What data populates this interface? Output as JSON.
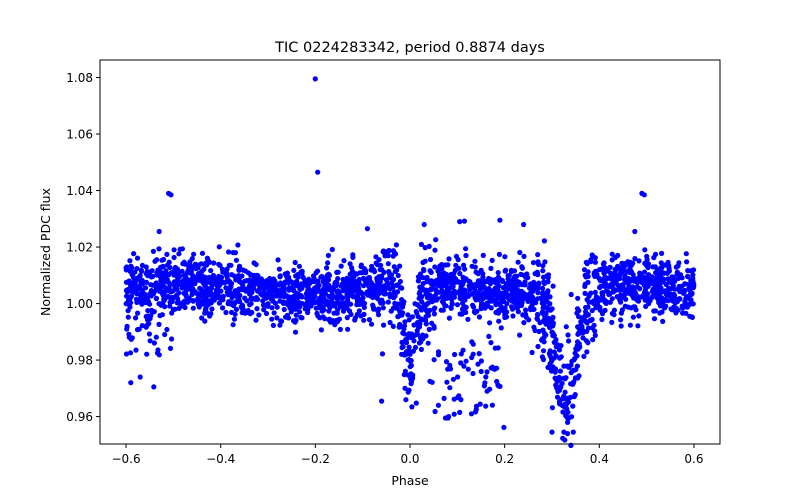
{
  "chart_data": {
    "type": "scatter",
    "title": "TIC 0224283342, period 0.8874 days",
    "xlabel": "Phase",
    "ylabel": "Normalized PDC flux",
    "xlim": [
      -0.655,
      0.655
    ],
    "ylim": [
      0.9503,
      1.0862
    ],
    "xticks": [
      -0.6,
      -0.4,
      -0.2,
      0.0,
      0.2,
      0.4,
      0.6
    ],
    "xtick_labels": [
      "−0.6",
      "−0.4",
      "−0.2",
      "0.0",
      "0.2",
      "0.4",
      "0.6"
    ],
    "yticks": [
      0.96,
      0.98,
      1.0,
      1.02,
      1.04,
      1.06,
      1.08
    ],
    "ytick_labels": [
      "0.96",
      "0.98",
      "1.00",
      "1.02",
      "1.04",
      "1.06",
      "1.08"
    ],
    "grid": false,
    "marker_color": "#0000ff",
    "baseline_flux": 1.005,
    "primary_eclipse": {
      "center_phase": 0.33,
      "width": 0.03,
      "min_flux": 0.955
    },
    "secondary_eclipse": {
      "center_phase": 0.0,
      "width": 0.02,
      "min_flux": 0.966
    },
    "notable_points": [
      {
        "x": -0.2,
        "y": 1.0795
      },
      {
        "x": -0.195,
        "y": 1.0465
      },
      {
        "x": -0.51,
        "y": 1.039
      },
      {
        "x": -0.505,
        "y": 1.0385
      },
      {
        "x": 0.49,
        "y": 1.039
      },
      {
        "x": 0.495,
        "y": 1.0385
      },
      {
        "x": -0.09,
        "y": 1.0265
      },
      {
        "x": 0.105,
        "y": 1.029
      },
      {
        "x": 0.115,
        "y": 1.0292
      },
      {
        "x": 0.19,
        "y": 1.0295
      },
      {
        "x": 0.24,
        "y": 1.028
      },
      {
        "x": -0.53,
        "y": 1.0255
      },
      {
        "x": 0.475,
        "y": 1.0255
      },
      {
        "x": -0.59,
        "y": 0.972
      },
      {
        "x": -0.57,
        "y": 0.974
      },
      {
        "x": -0.06,
        "y": 0.9655
      },
      {
        "x": 0.06,
        "y": 0.964
      },
      {
        "x": 0.075,
        "y": 0.9595
      },
      {
        "x": 0.13,
        "y": 0.961
      },
      {
        "x": 0.14,
        "y": 0.9625
      },
      {
        "x": 0.3,
        "y": 0.9545
      },
      {
        "x": 0.345,
        "y": 0.9545
      }
    ]
  }
}
